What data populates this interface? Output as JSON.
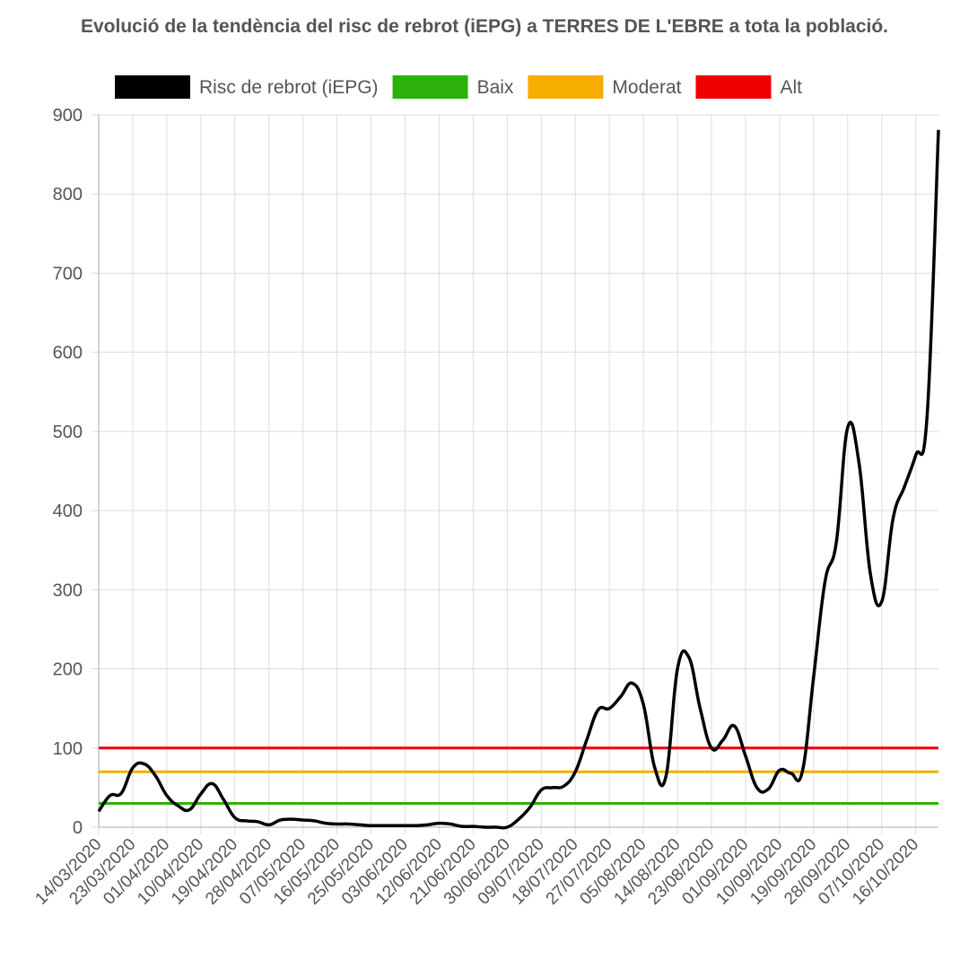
{
  "chart_data": {
    "type": "line",
    "title": "Evolució de la tendència del risc de rebrot (iEPG) a TERRES DE L'EBRE a tota la població.",
    "categories": [
      "14/03/2020",
      null,
      null,
      "23/03/2020",
      null,
      null,
      "01/04/2020",
      null,
      null,
      "10/04/2020",
      null,
      null,
      "19/04/2020",
      null,
      null,
      "28/04/2020",
      null,
      null,
      "07/05/2020",
      null,
      null,
      "16/05/2020",
      null,
      null,
      "25/05/2020",
      null,
      null,
      "03/06/2020",
      null,
      null,
      "12/06/2020",
      null,
      null,
      "21/06/2020",
      null,
      null,
      "30/06/2020",
      null,
      null,
      "09/07/2020",
      null,
      null,
      "18/07/2020",
      null,
      null,
      "27/07/2020",
      null,
      null,
      "05/08/2020",
      null,
      null,
      "14/08/2020",
      null,
      null,
      "23/08/2020",
      null,
      null,
      "01/09/2020",
      null,
      null,
      "10/09/2020",
      null,
      null,
      "19/09/2020",
      null,
      null,
      "28/09/2020",
      null,
      null,
      "07/10/2020",
      null,
      null,
      "16/10/2020",
      null,
      null
    ],
    "series": [
      {
        "name": "Risc de rebrot (iEPG)",
        "color": "#000000",
        "values": [
          20,
          40,
          43,
          75,
          80,
          65,
          40,
          27,
          22,
          42,
          55,
          35,
          12,
          8,
          7,
          3,
          9,
          10,
          9,
          8,
          5,
          4,
          4,
          3,
          2,
          2,
          2,
          2,
          2,
          3,
          5,
          4,
          1,
          1,
          0,
          0,
          0,
          10,
          25,
          47,
          50,
          52,
          70,
          110,
          148,
          150,
          165,
          182,
          155,
          75,
          65,
          200,
          215,
          150,
          100,
          110,
          128,
          90,
          50,
          48,
          72,
          68,
          70,
          190,
          310,
          360,
          505,
          460,
          320,
          285,
          390,
          430,
          470,
          520,
          881
        ]
      }
    ],
    "reference_lines": [
      {
        "name": "Baix",
        "color": "#2db10a",
        "value": 30
      },
      {
        "name": "Moderat",
        "color": "#f7ac00",
        "value": 70
      },
      {
        "name": "Alt",
        "color": "#f00000",
        "value": 100
      }
    ],
    "ylim": [
      0,
      900
    ],
    "yticks": [
      0,
      100,
      200,
      300,
      400,
      500,
      600,
      700,
      800,
      900
    ],
    "grid": true
  }
}
